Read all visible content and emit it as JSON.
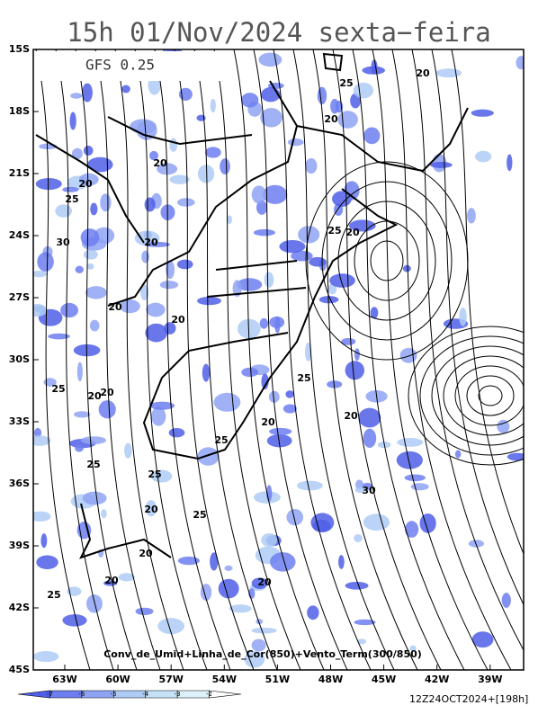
{
  "header": {
    "title": "15h 01/Nov/2024 sexta−feira",
    "model": "GFS 0.25"
  },
  "map": {
    "lat_labels": [
      "15S",
      "18S",
      "21S",
      "24S",
      "27S",
      "30S",
      "33S",
      "36S",
      "39S",
      "42S",
      "45S"
    ],
    "lon_labels": [
      "63W",
      "60W",
      "57W",
      "54W",
      "51W",
      "48W",
      "45W",
      "42W",
      "39W"
    ],
    "caption": "Conv_de_Umid+Linha_de_Cor(850)+Vento_Term(300/850)",
    "contour_labels": [
      "25",
      "20",
      "20",
      "20",
      "25",
      "30",
      "20",
      "20",
      "20",
      "25",
      "20",
      "20",
      "25",
      "25",
      "20",
      "20",
      "20",
      "20",
      "25",
      "25",
      "25",
      "20",
      "25",
      "20",
      "20",
      "20",
      "25",
      "30"
    ]
  },
  "colorbar": {
    "labels": [
      -7,
      -6,
      -5,
      -4,
      -3,
      -2
    ],
    "colors": [
      "#4f5fe8",
      "#6d7ff0",
      "#8fa3f3",
      "#aecbf5",
      "#c6e2f7",
      "#dcf1fa",
      "#ffffff"
    ]
  },
  "footer": {
    "run": "12Z24OCT2024+[198h]"
  }
}
